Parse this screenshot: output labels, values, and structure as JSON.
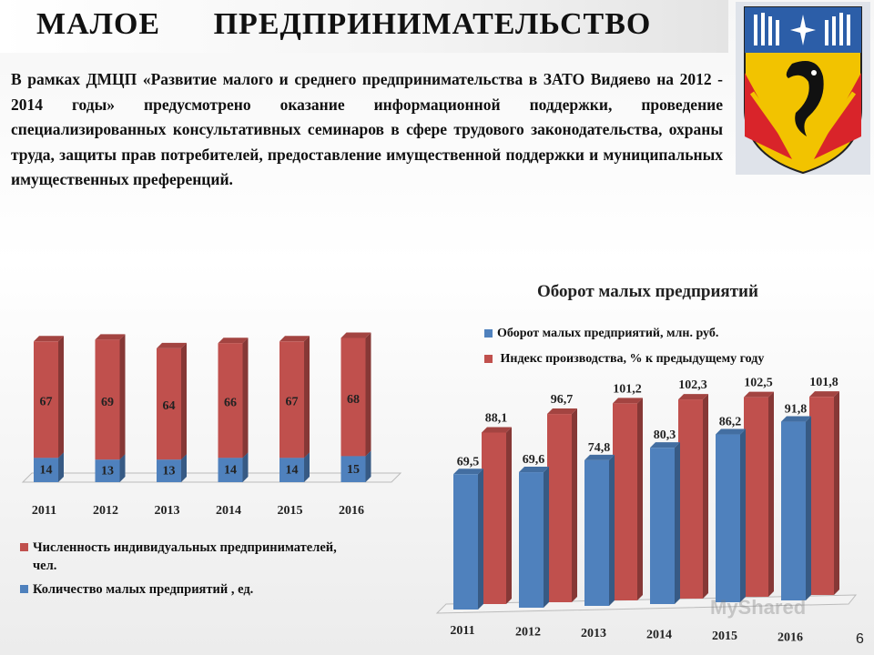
{
  "page": {
    "title": "МАЛОЕ   ПРЕДПРИНИМАТЕЛЬСТВО",
    "intro": "В рамках ДМЦП «Развитие малого и среднего предпринимательства в ЗАТО Видяево на 2012 - 2014 годы» предусмотрено оказание информационной поддержки, проведение специализированных консультативных семинаров в сфере трудового законодательства, охраны труда, защиты прав потребителей, предоставление имущественной поддержки и муниципальных имущественных преференций.",
    "slide_number": "6",
    "watermark": "MyShared"
  },
  "colors": {
    "red": "#c0504d",
    "blue": "#4f81bd"
  },
  "chart_data": [
    {
      "type": "bar",
      "stacked": true,
      "title": "",
      "categories": [
        "2011",
        "2012",
        "2013",
        "2014",
        "2015",
        "2016"
      ],
      "series": [
        {
          "name": "Численность индивидуальных предпринимателей, чел.",
          "values": [
            67,
            69,
            64,
            66,
            67,
            68
          ],
          "color": "#c0504d"
        },
        {
          "name": "Количество малых предприятий , ед.",
          "values": [
            14,
            13,
            13,
            14,
            14,
            15
          ],
          "color": "#4f81bd"
        }
      ],
      "legend": "bottom"
    },
    {
      "type": "bar",
      "title": "Оборот малых предприятий",
      "categories": [
        "2011",
        "2012",
        "2013",
        "2014",
        "2015",
        "2016"
      ],
      "series": [
        {
          "name": "Оборот малых предприятий, млн. руб.",
          "values": [
            69.5,
            69.6,
            74.8,
            80.3,
            86.2,
            91.8
          ],
          "labels": [
            "69,5",
            "69,6",
            "74,8",
            "80,3",
            "86,2",
            "91,8"
          ],
          "color": "#4f81bd"
        },
        {
          "name": " Индекс производства, % к предыдущему году",
          "values": [
            88.1,
            96.7,
            101.2,
            102.3,
            102.5,
            101.8
          ],
          "labels": [
            "88,1",
            "96,7",
            "101,2",
            "102,3",
            "102,5",
            "101,8"
          ],
          "color": "#c0504d"
        }
      ],
      "legend": "top"
    }
  ]
}
